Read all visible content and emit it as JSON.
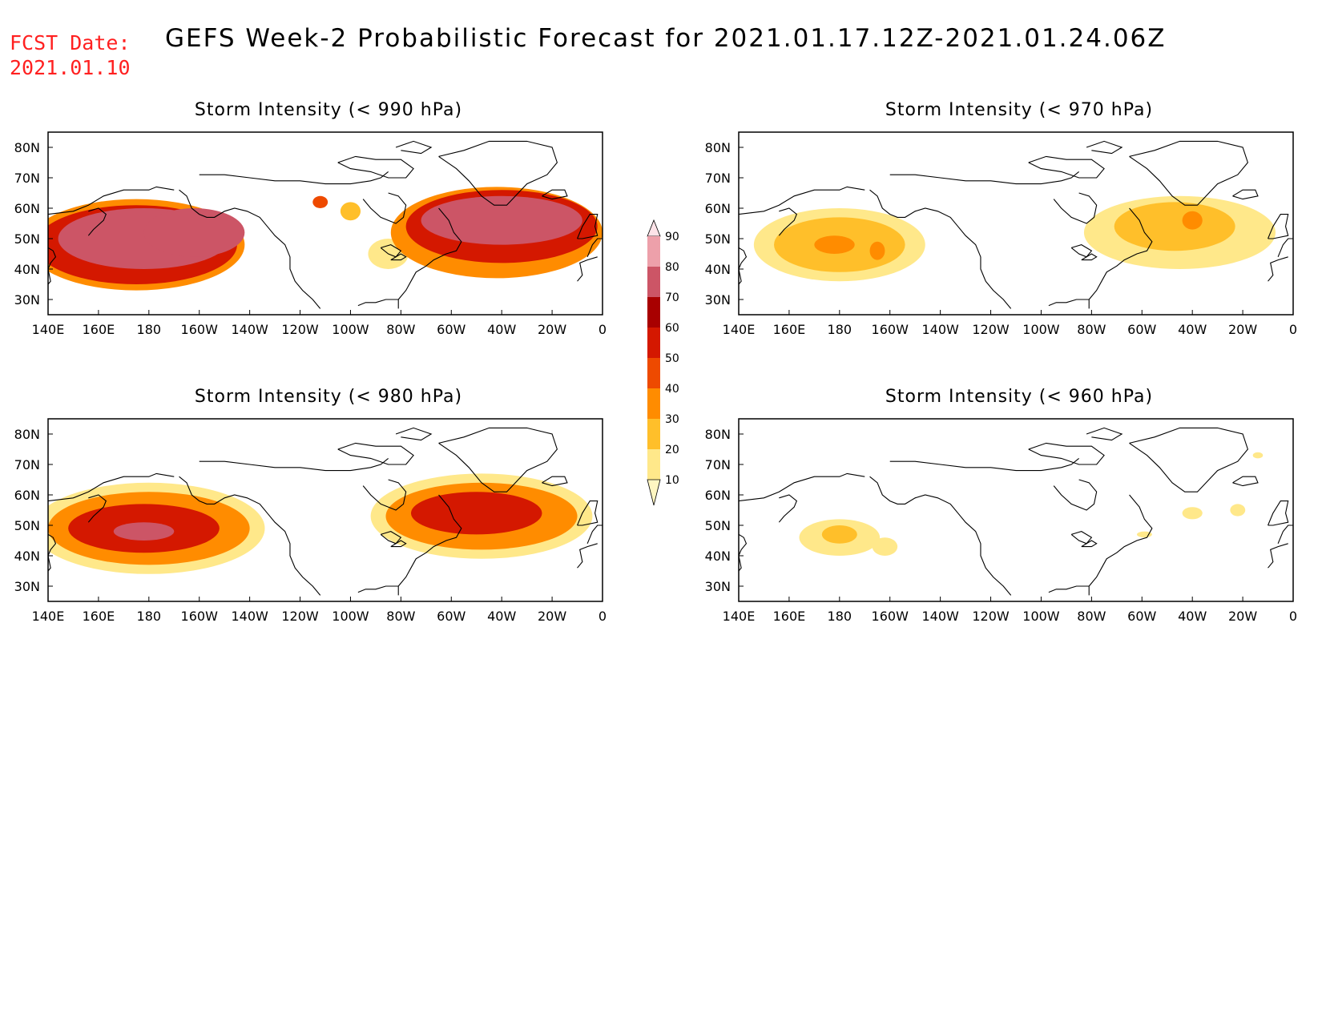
{
  "header": {
    "fcst_label": "FCST Date:",
    "fcst_date": "2021.01.10",
    "title": "GEFS Week-2 Probabilistic Forecast for 2021.01.17.12Z-2021.01.24.06Z"
  },
  "axes": {
    "x_ticks": [
      "140E",
      "160E",
      "180",
      "160W",
      "140W",
      "120W",
      "100W",
      "80W",
      "60W",
      "40W",
      "20W",
      "0"
    ],
    "y_ticks": [
      "80N",
      "70N",
      "60N",
      "50N",
      "40N",
      "30N"
    ],
    "lon_range": [
      140,
      360
    ],
    "lat_range": [
      25,
      85
    ]
  },
  "colorbar": {
    "levels": [
      "10",
      "20",
      "30",
      "40",
      "50",
      "60",
      "70",
      "80",
      "90"
    ],
    "colors": [
      "#fff6c2",
      "#ffe88a",
      "#ffbf2a",
      "#ff8c00",
      "#ee4a00",
      "#d41800",
      "#a80000",
      "#cc5566",
      "#eda0aa",
      "#fde3e8"
    ]
  },
  "panels": [
    {
      "title": "Storm Intensity (< 990 hPa)",
      "blobs": [
        {
          "lon": 178,
          "lat": 50,
          "rx": 34,
          "ry": 10,
          "level": 7
        },
        {
          "lon": 198,
          "lat": 52,
          "rx": 20,
          "ry": 8,
          "level": 7
        },
        {
          "lon": 175,
          "lat": 48,
          "rx": 40,
          "ry": 13,
          "level": 5
        },
        {
          "lon": 175,
          "lat": 48,
          "rx": 43,
          "ry": 15,
          "level": 3
        },
        {
          "lon": 248,
          "lat": 62,
          "rx": 3,
          "ry": 2,
          "level": 4
        },
        {
          "lon": 260,
          "lat": 59,
          "rx": 4,
          "ry": 3,
          "level": 2
        },
        {
          "lon": 320,
          "lat": 56,
          "rx": 32,
          "ry": 8,
          "level": 7
        },
        {
          "lon": 320,
          "lat": 54,
          "rx": 38,
          "ry": 12,
          "level": 5
        },
        {
          "lon": 318,
          "lat": 52,
          "rx": 42,
          "ry": 15,
          "level": 3
        },
        {
          "lon": 275,
          "lat": 45,
          "rx": 8,
          "ry": 5,
          "level": 1
        }
      ]
    },
    {
      "title": "Storm Intensity (< 970 hPa)",
      "blobs": [
        {
          "lon": 178,
          "lat": 48,
          "rx": 8,
          "ry": 3,
          "level": 3
        },
        {
          "lon": 195,
          "lat": 46,
          "rx": 3,
          "ry": 3,
          "level": 3
        },
        {
          "lon": 180,
          "lat": 48,
          "rx": 26,
          "ry": 9,
          "level": 2
        },
        {
          "lon": 180,
          "lat": 48,
          "rx": 34,
          "ry": 12,
          "level": 1
        },
        {
          "lon": 320,
          "lat": 56,
          "rx": 4,
          "ry": 3,
          "level": 3
        },
        {
          "lon": 313,
          "lat": 54,
          "rx": 24,
          "ry": 8,
          "level": 2
        },
        {
          "lon": 315,
          "lat": 52,
          "rx": 38,
          "ry": 12,
          "level": 1
        }
      ]
    },
    {
      "title": "Storm Intensity (< 980 hPa)",
      "blobs": [
        {
          "lon": 178,
          "lat": 48,
          "rx": 12,
          "ry": 3,
          "level": 7
        },
        {
          "lon": 178,
          "lat": 49,
          "rx": 30,
          "ry": 8,
          "level": 5
        },
        {
          "lon": 180,
          "lat": 49,
          "rx": 40,
          "ry": 12,
          "level": 3
        },
        {
          "lon": 180,
          "lat": 49,
          "rx": 46,
          "ry": 15,
          "level": 1
        },
        {
          "lon": 310,
          "lat": 54,
          "rx": 26,
          "ry": 7,
          "level": 5
        },
        {
          "lon": 312,
          "lat": 53,
          "rx": 38,
          "ry": 11,
          "level": 3
        },
        {
          "lon": 312,
          "lat": 53,
          "rx": 44,
          "ry": 14,
          "level": 1
        }
      ]
    },
    {
      "title": "Storm Intensity (< 960 hPa)",
      "blobs": [
        {
          "lon": 180,
          "lat": 47,
          "rx": 7,
          "ry": 3,
          "level": 2
        },
        {
          "lon": 180,
          "lat": 46,
          "rx": 16,
          "ry": 6,
          "level": 1
        },
        {
          "lon": 198,
          "lat": 43,
          "rx": 5,
          "ry": 3,
          "level": 1
        },
        {
          "lon": 320,
          "lat": 54,
          "rx": 4,
          "ry": 2,
          "level": 1
        },
        {
          "lon": 338,
          "lat": 55,
          "rx": 3,
          "ry": 2,
          "level": 1
        },
        {
          "lon": 301,
          "lat": 47,
          "rx": 3,
          "ry": 1,
          "level": 1
        },
        {
          "lon": 346,
          "lat": 73,
          "rx": 2,
          "ry": 1,
          "level": 1
        }
      ]
    }
  ]
}
